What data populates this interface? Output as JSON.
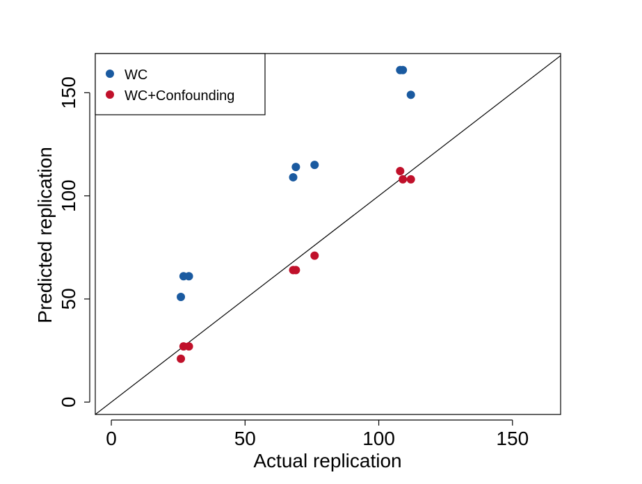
{
  "chart_data": {
    "type": "scatter",
    "title": "",
    "xlabel": "Actual replication",
    "ylabel": "Predicted replication",
    "xlim": [
      -6,
      168
    ],
    "ylim": [
      -6,
      169
    ],
    "xticks": [
      0,
      50,
      100,
      150
    ],
    "yticks": [
      0,
      50,
      100,
      150
    ],
    "grid": false,
    "legend": "top-left",
    "reference_line": "y = x",
    "series": [
      {
        "name": "WC",
        "color": "#1a5aa0",
        "x": [
          26,
          27,
          29,
          68,
          69,
          76,
          108,
          109,
          112
        ],
        "y": [
          51,
          61,
          61,
          109,
          114,
          115,
          161,
          161,
          149
        ]
      },
      {
        "name": "WC+Confounding",
        "color": "#c0102a",
        "x": [
          26,
          27,
          29,
          68,
          69,
          76,
          108,
          109,
          112
        ],
        "y": [
          21,
          27,
          27,
          64,
          64,
          71,
          112,
          108,
          108
        ]
      }
    ]
  }
}
